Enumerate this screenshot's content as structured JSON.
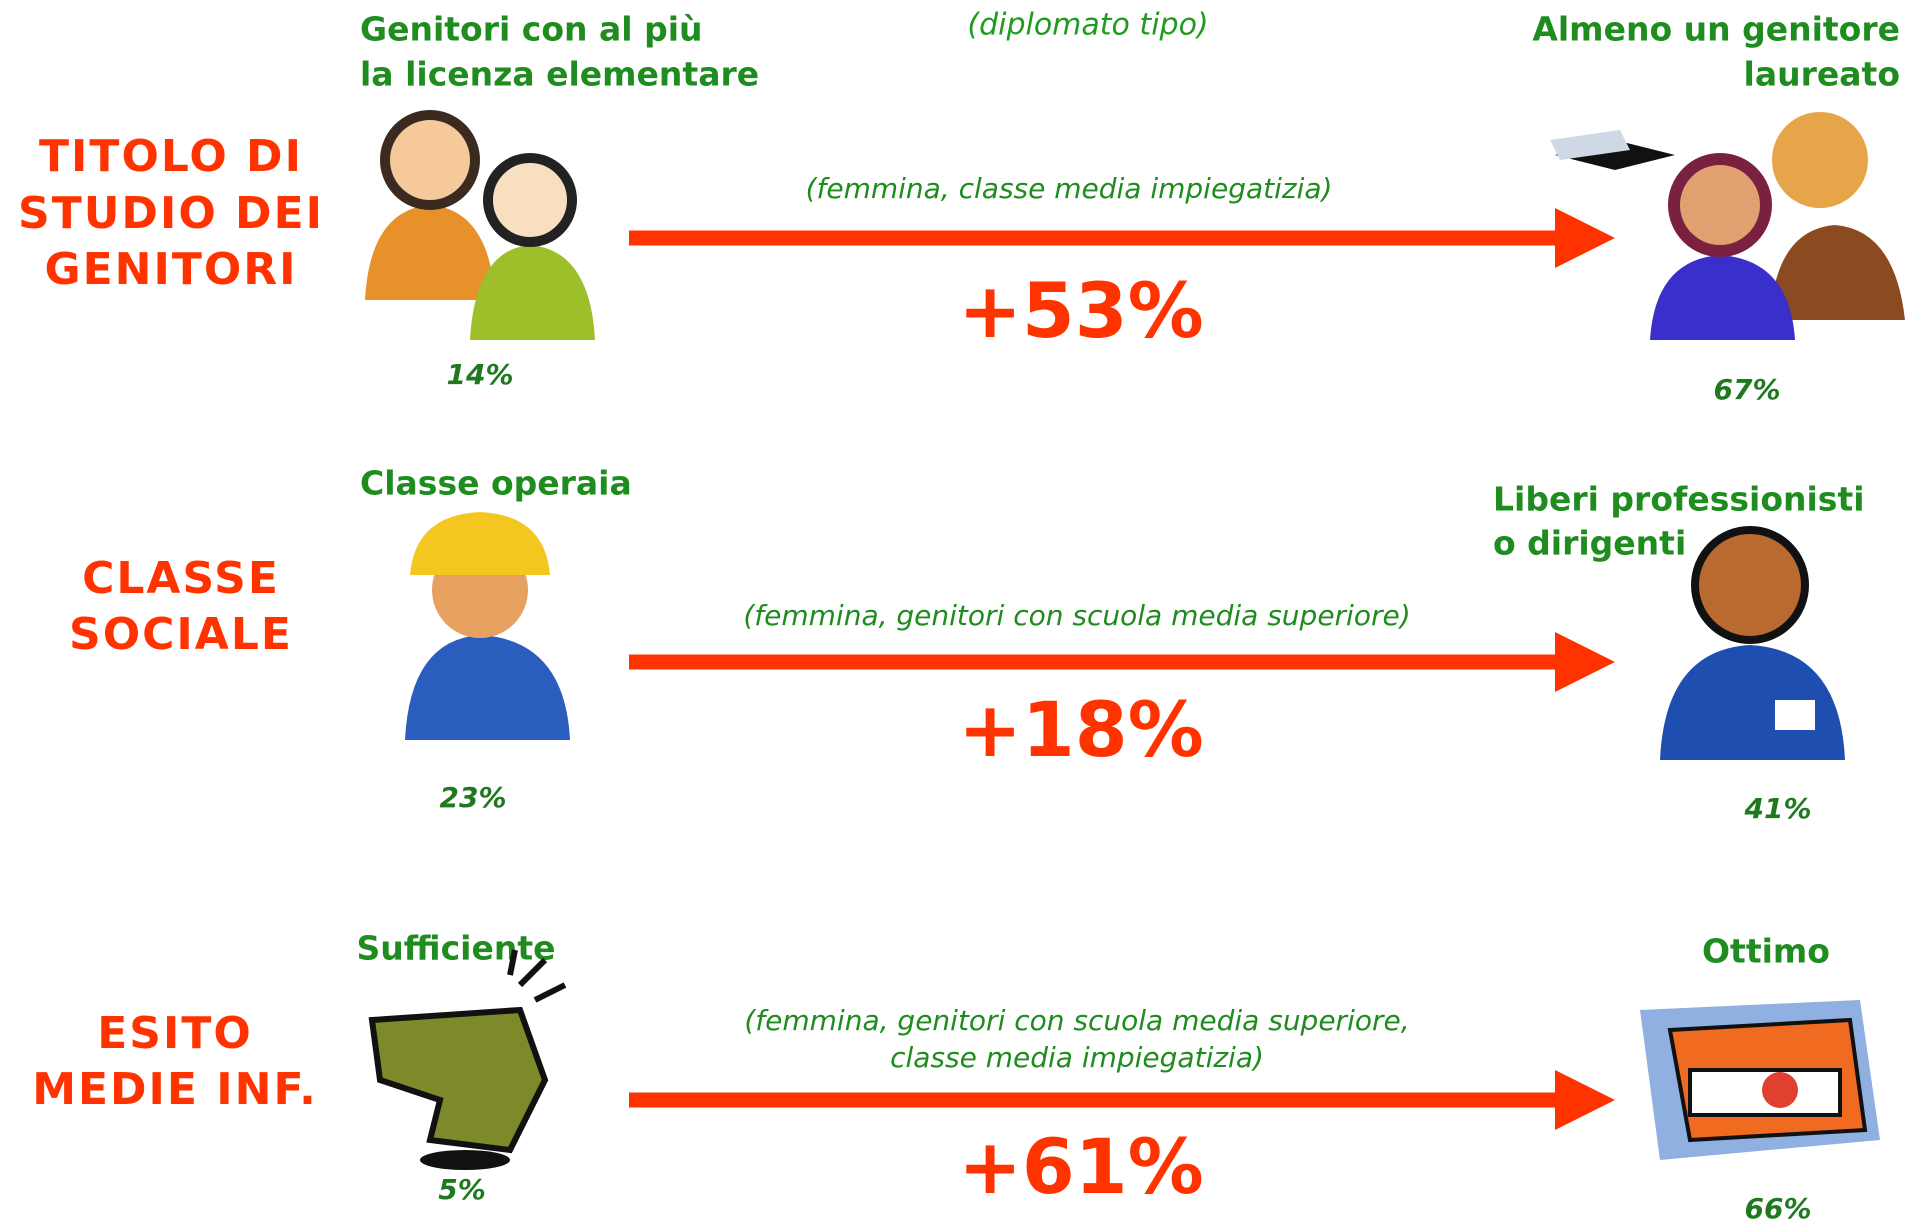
{
  "header": {
    "subtitle": "(diplomato tipo)"
  },
  "rows": [
    {
      "label": [
        "TITOLO DI",
        "STUDIO DEI",
        "GENITORI"
      ],
      "left": {
        "title": [
          "Genitori con al più",
          "la licenza elementare"
        ],
        "percent": "14%"
      },
      "right": {
        "title": [
          "Almeno un genitore",
          "laureato"
        ],
        "percent": "67%"
      },
      "note": [
        "(femmina, classe media impiegatizia)"
      ],
      "change": "+53%"
    },
    {
      "label": [
        "CLASSE",
        "SOCIALE"
      ],
      "left": {
        "title": [
          "Classe operaia"
        ],
        "percent": "23%"
      },
      "right": {
        "title": [
          "Liberi professionisti",
          "o dirigenti"
        ],
        "percent": "41%"
      },
      "note": [
        "(femmina, genitori con scuola media superiore)"
      ],
      "change": "+18%"
    },
    {
      "label": [
        "ESITO",
        "MEDIE INF."
      ],
      "left": {
        "title": [
          "Sufficiente"
        ],
        "percent": "5%"
      },
      "right": {
        "title": [
          "Ottimo"
        ],
        "percent": "66%"
      },
      "note": [
        "(femmina, genitori con scuola media superiore,",
        "classe media impiegatizia)"
      ],
      "change": "+61%"
    }
  ]
}
